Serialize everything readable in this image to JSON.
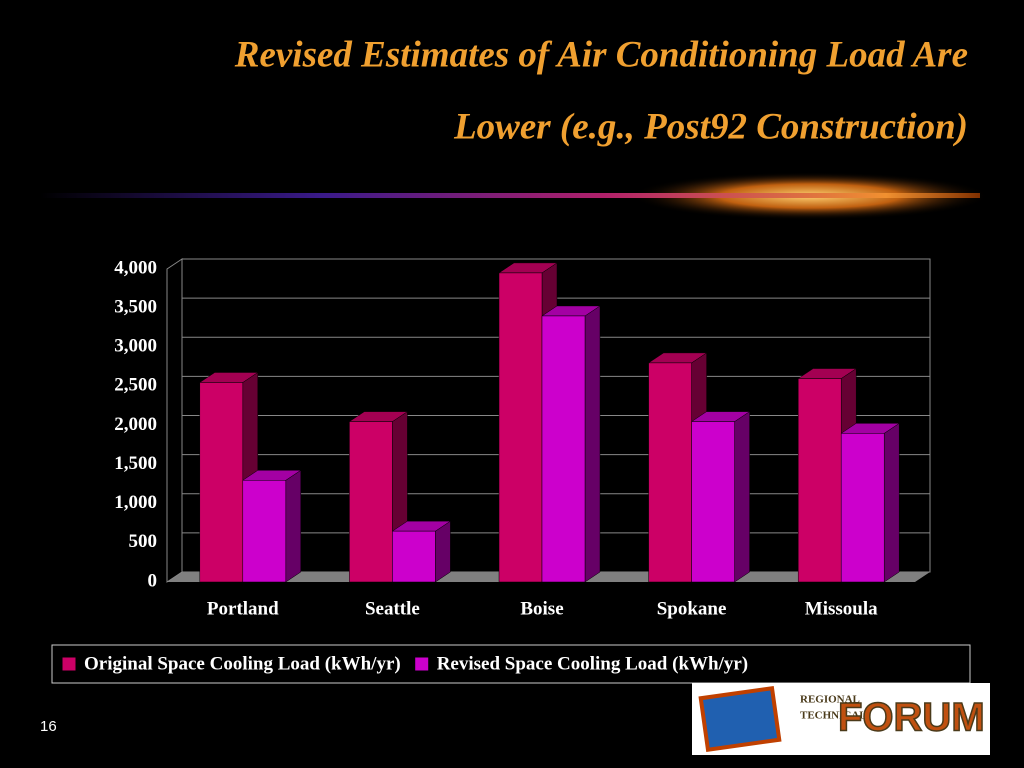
{
  "chart_data": {
    "type": "bar3d",
    "title": [
      "Revised Estimates of Air Conditioning Load Are",
      "Lower (e.g., Post92 Construction)"
    ],
    "categories": [
      "Portland",
      "Seattle",
      "Boise",
      "Spokane",
      "Missoula"
    ],
    "series": [
      {
        "name": "Original Space Cooling Load (kWh/yr)",
        "color": "#cc0066",
        "values": [
          2550,
          2050,
          3950,
          2800,
          2600
        ]
      },
      {
        "name": "Revised Space Cooling Load (kWh/yr)",
        "color": "#cc00cc",
        "values": [
          1300,
          650,
          3400,
          2050,
          1900
        ]
      }
    ],
    "ylim": [
      0,
      4000
    ],
    "yticks": [
      0,
      500,
      {
        "value": 1000,
        "label": "1,000"
      },
      {
        "value": 1500,
        "label": "1,500"
      },
      {
        "value": 2000,
        "label": "2,000"
      },
      {
        "value": 2500,
        "label": "2,500"
      },
      {
        "value": 3000,
        "label": "3,000"
      },
      {
        "value": 3500,
        "label": "3,500"
      },
      {
        "value": 4000,
        "label": "4,000"
      }
    ],
    "grid": true,
    "legend": "bottom"
  },
  "slide_number": "16",
  "logo": {
    "line1": "REGIONAL",
    "line2": "TECHNICAL",
    "word": "FORUM"
  }
}
